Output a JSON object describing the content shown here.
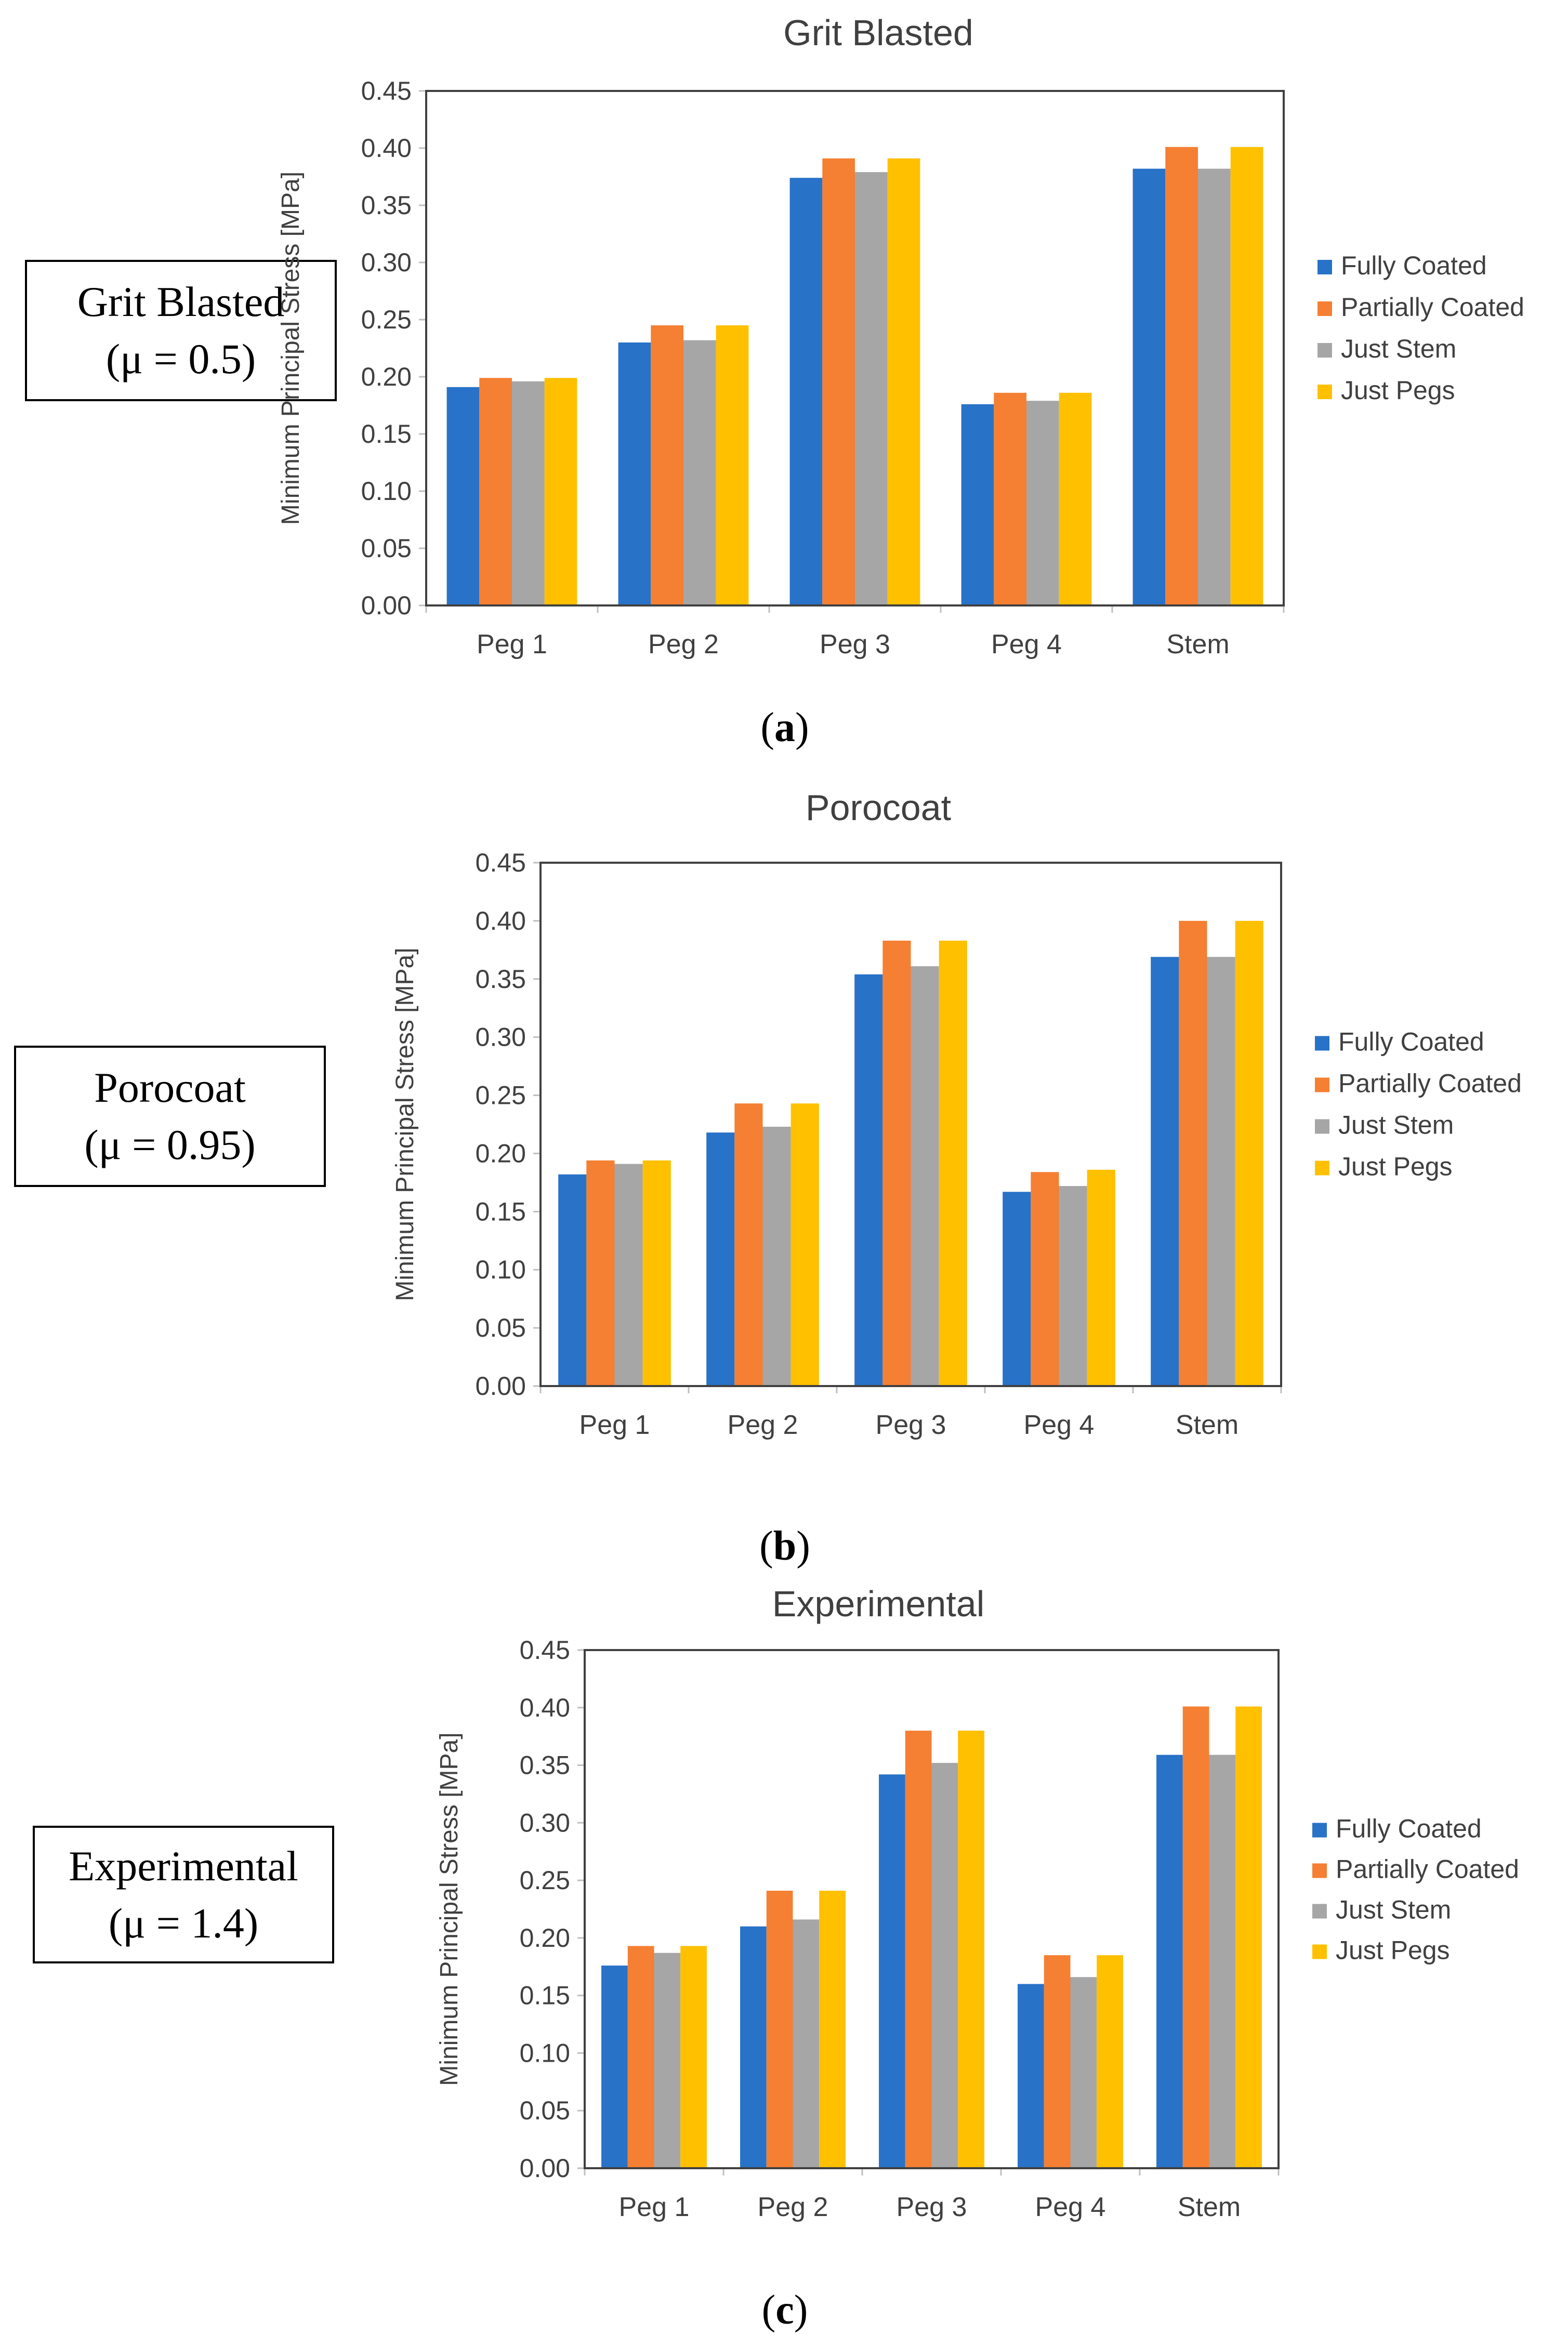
{
  "colors": {
    "fully_coated": "#2872c8",
    "partially_coated": "#f57f32",
    "just_stem": "#a6a6a6",
    "just_pegs": "#ffc000",
    "axis": "#bfbfbf",
    "plot_border": "#404040"
  },
  "panels": [
    {
      "box_title": "Grit Blasted",
      "box_mu": "(μ = 0.5)",
      "sub_letter": "a"
    },
    {
      "box_title": "Porocoat",
      "box_mu": "(μ = 0.95)",
      "sub_letter": "b"
    },
    {
      "box_title": "Experimental",
      "box_mu": "(μ = 1.4)",
      "sub_letter": "c"
    }
  ],
  "chart_data": [
    {
      "type": "bar",
      "title": "Grit Blasted",
      "ylabel": "Minimum Principal Stress [MPa]",
      "xlabel": "",
      "ylim": [
        0,
        0.45
      ],
      "yticks": [
        "0.00",
        "0.05",
        "0.10",
        "0.15",
        "0.20",
        "0.25",
        "0.30",
        "0.35",
        "0.40",
        "0.45"
      ],
      "categories": [
        "Peg 1",
        "Peg 2",
        "Peg 3",
        "Peg 4",
        "Stem"
      ],
      "legend_position": "right",
      "series": [
        {
          "name": "Fully Coated",
          "values": [
            0.191,
            0.23,
            0.374,
            0.176,
            0.382
          ]
        },
        {
          "name": "Partially Coated",
          "values": [
            0.199,
            0.245,
            0.391,
            0.186,
            0.401
          ]
        },
        {
          "name": "Just Stem",
          "values": [
            0.196,
            0.232,
            0.379,
            0.179,
            0.382
          ]
        },
        {
          "name": "Just Pegs",
          "values": [
            0.199,
            0.245,
            0.391,
            0.186,
            0.401
          ]
        }
      ]
    },
    {
      "type": "bar",
      "title": "Porocoat",
      "ylabel": "Minimum Principal Stress [MPa]",
      "xlabel": "",
      "ylim": [
        0,
        0.45
      ],
      "yticks": [
        "0.00",
        "0.05",
        "0.10",
        "0.15",
        "0.20",
        "0.25",
        "0.30",
        "0.35",
        "0.40",
        "0.45"
      ],
      "categories": [
        "Peg 1",
        "Peg 2",
        "Peg 3",
        "Peg 4",
        "Stem"
      ],
      "legend_position": "right",
      "series": [
        {
          "name": "Fully Coated",
          "values": [
            0.182,
            0.218,
            0.354,
            0.167,
            0.369
          ]
        },
        {
          "name": "Partially Coated",
          "values": [
            0.194,
            0.243,
            0.383,
            0.184,
            0.4
          ]
        },
        {
          "name": "Just Stem",
          "values": [
            0.191,
            0.223,
            0.361,
            0.172,
            0.369
          ]
        },
        {
          "name": "Just Pegs",
          "values": [
            0.194,
            0.243,
            0.383,
            0.186,
            0.4
          ]
        }
      ]
    },
    {
      "type": "bar",
      "title": "Experimental",
      "ylabel": "Minimum Principal Stress [MPa]",
      "xlabel": "",
      "ylim": [
        0,
        0.45
      ],
      "yticks": [
        "0.00",
        "0.05",
        "0.10",
        "0.15",
        "0.20",
        "0.25",
        "0.30",
        "0.35",
        "0.40",
        "0.45"
      ],
      "categories": [
        "Peg 1",
        "Peg 2",
        "Peg 3",
        "Peg 4",
        "Stem"
      ],
      "legend_position": "right",
      "series": [
        {
          "name": "Fully Coated",
          "values": [
            0.176,
            0.21,
            0.342,
            0.16,
            0.359
          ]
        },
        {
          "name": "Partially Coated",
          "values": [
            0.193,
            0.241,
            0.38,
            0.185,
            0.401
          ]
        },
        {
          "name": "Just Stem",
          "values": [
            0.187,
            0.216,
            0.352,
            0.166,
            0.359
          ]
        },
        {
          "name": "Just Pegs",
          "values": [
            0.193,
            0.241,
            0.38,
            0.185,
            0.401
          ]
        }
      ]
    }
  ]
}
